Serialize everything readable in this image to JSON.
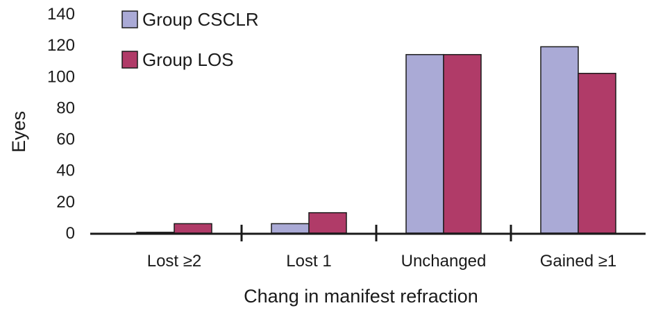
{
  "chart_data": {
    "type": "bar",
    "title": "",
    "xlabel": "Chang in manifest refraction",
    "ylabel": "Eyes",
    "categories": [
      "Lost ≥2",
      "Lost 1",
      "Unchanged",
      "Gained ≥1"
    ],
    "series": [
      {
        "name": "Group CSCLR",
        "color": "#aaaad6",
        "values": [
          0.5,
          6,
          114,
          119
        ]
      },
      {
        "name": "Group LOS",
        "color": "#b03b68",
        "values": [
          6,
          13,
          114,
          102
        ]
      }
    ],
    "ylim": [
      0,
      140
    ],
    "yticks": [
      0,
      20,
      40,
      60,
      80,
      100,
      120,
      140
    ],
    "grid": false,
    "legend_position": "top-left"
  }
}
